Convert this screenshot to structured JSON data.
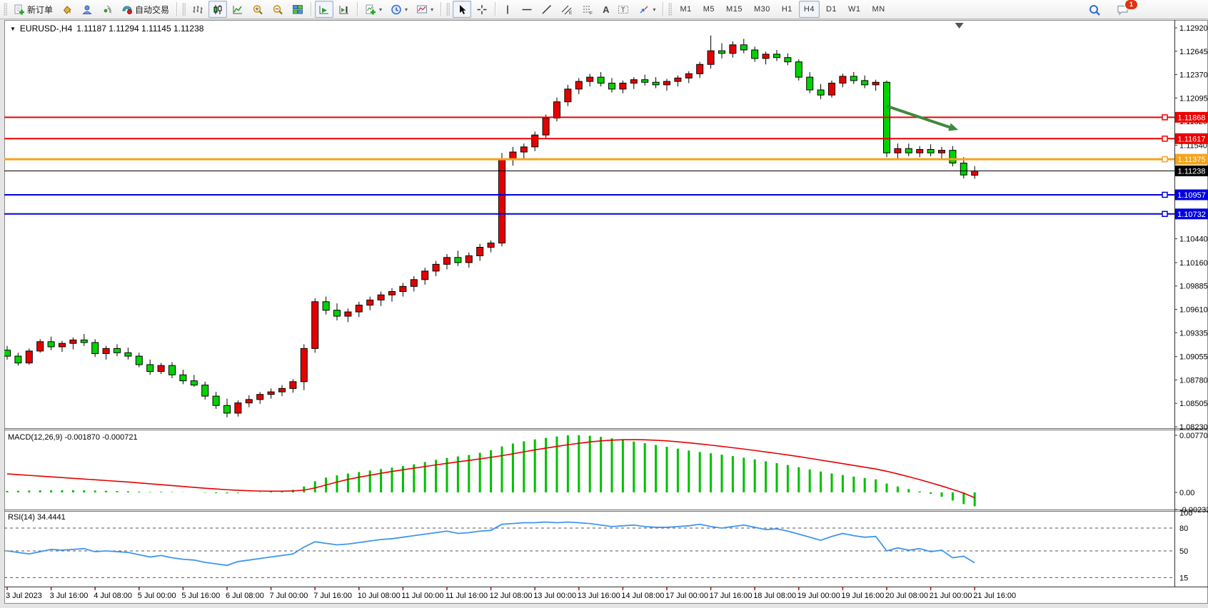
{
  "toolbar": {
    "new_order": "新订单",
    "auto_trading": "自动交易",
    "text_tool": "A",
    "label_tool": "T",
    "timeframes": [
      "M1",
      "M5",
      "M15",
      "M30",
      "H1",
      "H4",
      "D1",
      "W1",
      "MN"
    ],
    "active_timeframe": "H4",
    "notification_count": "1"
  },
  "chart": {
    "symbol_title": "EURUSD-,H4",
    "ohlc": "1.11187 1.11294 1.11145 1.11238",
    "colors": {
      "up": "#e60000",
      "down": "#00d300",
      "outline": "#000000",
      "macd_hist": "#00c000",
      "macd_signal": "#e60000",
      "rsi_line": "#4096ee",
      "level_dash": "#555555",
      "date_tick": "#cc0000"
    },
    "price_axis_labels": [
      "1.12920",
      "1.12645",
      "1.12370",
      "1.12095",
      "1.11820",
      "1.11540",
      "1.10440",
      "1.10160",
      "1.09885",
      "1.09610",
      "1.09335",
      "1.09055",
      "1.08780",
      "1.08505",
      "1.08230"
    ],
    "price_max": 1.1292,
    "price_min": 1.0823,
    "hlines": [
      {
        "price": "1.11868",
        "value": 1.11868,
        "color": "#ee0000",
        "width": 2,
        "anchor": true
      },
      {
        "price": "1.11617",
        "value": 1.11617,
        "color": "#ee0000",
        "width": 2,
        "anchor": true
      },
      {
        "price": "1.11375",
        "value": 1.11375,
        "color": "#f7a21b",
        "width": 3,
        "anchor": true
      },
      {
        "price": "1.11238",
        "value": 1.11238,
        "color": "#000000",
        "width": 1,
        "anchor": false
      },
      {
        "price": "1.10957",
        "value": 1.10957,
        "color": "#0000e0",
        "width": 2,
        "anchor": true
      },
      {
        "price": "1.10732",
        "value": 1.10732,
        "color": "#0000e0",
        "width": 2,
        "anchor": true
      }
    ],
    "arrow": {
      "from_bar": 80.0,
      "from_price": 1.12,
      "to_bar": 86.5,
      "to_price": 1.1172,
      "color": "#3c8a3c"
    },
    "shift_marker_bar": 86.6
  },
  "macd_panel": {
    "label": "MACD(12,26,9) -0.001870 -0.000721",
    "axis_labels": [
      {
        "text": "0.007705",
        "value": 0.007705
      },
      {
        "text": "0.00",
        "value": 0
      },
      {
        "text": "-0.002326",
        "value": -0.002326
      }
    ],
    "max": 0.007705
  },
  "rsi_panel": {
    "label": "RSI(14) 34.4441",
    "axis_labels": [
      {
        "text": "100",
        "value": 100
      },
      {
        "text": "80",
        "value": 80
      },
      {
        "text": "50",
        "value": 50
      },
      {
        "text": "15",
        "value": 15
      }
    ],
    "dash_levels": [
      80,
      50,
      15
    ]
  },
  "chart_data": {
    "type": "candlestick",
    "title": "EURUSD- H4",
    "x_labels": [
      "3 Jul 2023",
      "3 Jul 16:00",
      "4 Jul 08:00",
      "5 Jul 00:00",
      "5 Jul 16:00",
      "6 Jul 08:00",
      "7 Jul 00:00",
      "7 Jul 16:00",
      "10 Jul 08:00",
      "11 Jul 00:00",
      "11 Jul 16:00",
      "12 Jul 08:00",
      "13 Jul 00:00",
      "13 Jul 16:00",
      "14 Jul 08:00",
      "17 Jul 00:00",
      "17 Jul 16:00",
      "18 Jul 08:00",
      "19 Jul 00:00",
      "19 Jul 16:00",
      "20 Jul 08:00",
      "21 Jul 00:00",
      "21 Jul 16:00"
    ],
    "bars_per_label": 4,
    "candles": [
      [
        1.0913,
        1.0918,
        1.0902,
        1.0906
      ],
      [
        1.0906,
        1.091,
        1.0895,
        1.0898
      ],
      [
        1.0898,
        1.0915,
        1.0896,
        1.0912
      ],
      [
        1.0912,
        1.0926,
        1.091,
        1.0923
      ],
      [
        1.0923,
        1.0929,
        1.0913,
        1.0917
      ],
      [
        1.0917,
        1.0924,
        1.0911,
        1.0921
      ],
      [
        1.0921,
        1.0928,
        1.0914,
        1.0925
      ],
      [
        1.0925,
        1.0932,
        1.0918,
        1.0922
      ],
      [
        1.0922,
        1.0926,
        1.0905,
        1.0909
      ],
      [
        1.0909,
        1.0918,
        1.0902,
        1.0915
      ],
      [
        1.0915,
        1.092,
        1.0906,
        1.091
      ],
      [
        1.091,
        1.0916,
        1.0902,
        1.0906
      ],
      [
        1.0906,
        1.091,
        1.0893,
        1.0896
      ],
      [
        1.0896,
        1.0902,
        1.0884,
        1.0888
      ],
      [
        1.0888,
        1.0898,
        1.0885,
        1.0895
      ],
      [
        1.0895,
        1.0899,
        1.088,
        1.0884
      ],
      [
        1.0884,
        1.089,
        1.0873,
        1.0877
      ],
      [
        1.0877,
        1.0884,
        1.087,
        1.0872
      ],
      [
        1.0872,
        1.0876,
        1.0855,
        1.0859
      ],
      [
        1.0859,
        1.0864,
        1.0844,
        1.0848
      ],
      [
        1.0848,
        1.0856,
        1.0834,
        1.0839
      ],
      [
        1.0839,
        1.0854,
        1.0835,
        1.0851
      ],
      [
        1.0851,
        1.086,
        1.0846,
        1.0855
      ],
      [
        1.0855,
        1.0864,
        1.085,
        1.0861
      ],
      [
        1.0861,
        1.0868,
        1.0856,
        1.0864
      ],
      [
        1.0864,
        1.0872,
        1.0859,
        1.0868
      ],
      [
        1.0868,
        1.0879,
        1.0863,
        1.0876
      ],
      [
        1.0876,
        1.092,
        1.0866,
        1.0915
      ],
      [
        1.0915,
        1.0974,
        1.091,
        1.097
      ],
      [
        1.097,
        1.0976,
        1.0955,
        1.096
      ],
      [
        1.096,
        1.0968,
        1.0948,
        1.0953
      ],
      [
        1.0953,
        1.0962,
        1.0946,
        1.0958
      ],
      [
        1.0958,
        1.097,
        1.0952,
        1.0966
      ],
      [
        1.0966,
        1.0976,
        1.096,
        1.0972
      ],
      [
        1.0972,
        1.0982,
        1.0965,
        1.0978
      ],
      [
        1.0978,
        1.0986,
        1.097,
        1.0982
      ],
      [
        1.0982,
        1.0992,
        1.0976,
        1.0988
      ],
      [
        1.0988,
        1.1,
        1.0982,
        1.0996
      ],
      [
        1.0996,
        1.101,
        1.099,
        1.1006
      ],
      [
        1.1006,
        1.1018,
        1.1,
        1.1014
      ],
      [
        1.1014,
        1.1026,
        1.1008,
        1.1022
      ],
      [
        1.1022,
        1.103,
        1.1012,
        1.1016
      ],
      [
        1.1016,
        1.1028,
        1.101,
        1.1024
      ],
      [
        1.1024,
        1.1038,
        1.1018,
        1.1034
      ],
      [
        1.1034,
        1.1042,
        1.1028,
        1.1039
      ],
      [
        1.1039,
        1.1145,
        1.1035,
        1.1138
      ],
      [
        1.1138,
        1.1152,
        1.113,
        1.1146
      ],
      [
        1.1146,
        1.1156,
        1.1138,
        1.1152
      ],
      [
        1.1152,
        1.117,
        1.1147,
        1.1166
      ],
      [
        1.1166,
        1.119,
        1.1161,
        1.1186
      ],
      [
        1.1186,
        1.121,
        1.1182,
        1.1205
      ],
      [
        1.1205,
        1.1225,
        1.12,
        1.122
      ],
      [
        1.122,
        1.1233,
        1.1214,
        1.1229
      ],
      [
        1.1229,
        1.1238,
        1.1223,
        1.1234
      ],
      [
        1.1234,
        1.124,
        1.1223,
        1.1227
      ],
      [
        1.1227,
        1.1233,
        1.1216,
        1.122
      ],
      [
        1.122,
        1.123,
        1.1215,
        1.1227
      ],
      [
        1.1227,
        1.1234,
        1.122,
        1.1231
      ],
      [
        1.1231,
        1.1237,
        1.1224,
        1.1228
      ],
      [
        1.1228,
        1.1234,
        1.1221,
        1.1225
      ],
      [
        1.1225,
        1.1232,
        1.1218,
        1.1229
      ],
      [
        1.1229,
        1.1236,
        1.1223,
        1.1233
      ],
      [
        1.1233,
        1.1241,
        1.1227,
        1.1238
      ],
      [
        1.1238,
        1.1252,
        1.1233,
        1.1249
      ],
      [
        1.1249,
        1.1283,
        1.1244,
        1.1265
      ],
      [
        1.1265,
        1.1274,
        1.1256,
        1.1262
      ],
      [
        1.1262,
        1.1276,
        1.1257,
        1.1272
      ],
      [
        1.1272,
        1.1279,
        1.1262,
        1.1266
      ],
      [
        1.1266,
        1.127,
        1.1252,
        1.1256
      ],
      [
        1.1256,
        1.1264,
        1.1249,
        1.1261
      ],
      [
        1.1261,
        1.1266,
        1.1253,
        1.1257
      ],
      [
        1.1257,
        1.1262,
        1.1248,
        1.1252
      ],
      [
        1.1252,
        1.1255,
        1.123,
        1.1234
      ],
      [
        1.1234,
        1.124,
        1.1215,
        1.1219
      ],
      [
        1.1219,
        1.1226,
        1.1208,
        1.1213
      ],
      [
        1.1213,
        1.123,
        1.121,
        1.1227
      ],
      [
        1.1227,
        1.1238,
        1.1222,
        1.1235
      ],
      [
        1.1235,
        1.124,
        1.1226,
        1.123
      ],
      [
        1.123,
        1.1236,
        1.1221,
        1.1225
      ],
      [
        1.1225,
        1.1231,
        1.1218,
        1.1228
      ],
      [
        1.1228,
        1.123,
        1.114,
        1.1145
      ],
      [
        1.1145,
        1.1156,
        1.1138,
        1.115
      ],
      [
        1.115,
        1.1156,
        1.1141,
        1.1145
      ],
      [
        1.1145,
        1.1153,
        1.114,
        1.1149
      ],
      [
        1.1149,
        1.1155,
        1.1141,
        1.1145
      ],
      [
        1.1145,
        1.1152,
        1.1138,
        1.1148
      ],
      [
        1.1148,
        1.1153,
        1.1129,
        1.1133
      ],
      [
        1.1133,
        1.114,
        1.1115,
        1.1119
      ],
      [
        1.11187,
        1.11294,
        1.11145,
        1.11238
      ]
    ],
    "macd_histogram": [
      0.0002,
      0.00022,
      0.00025,
      0.00027,
      0.00028,
      0.0003,
      0.0003,
      0.00028,
      0.00025,
      0.00022,
      0.00018,
      0.00015,
      0.0001,
      6e-05,
      8e-05,
      5e-05,
      2e-05,
      0.0,
      -5e-05,
      -0.0001,
      -0.00012,
      -8e-05,
      -2e-05,
      5e-05,
      0.00012,
      0.0002,
      0.00035,
      0.0008,
      0.0015,
      0.002,
      0.0023,
      0.00255,
      0.00275,
      0.00295,
      0.00315,
      0.00335,
      0.00355,
      0.0038,
      0.0041,
      0.0044,
      0.00465,
      0.00485,
      0.00505,
      0.00535,
      0.0057,
      0.0062,
      0.0066,
      0.0069,
      0.00715,
      0.00735,
      0.00755,
      0.0077,
      0.00772,
      0.00765,
      0.0075,
      0.0073,
      0.0071,
      0.00688,
      0.00664,
      0.0064,
      0.00615,
      0.0059,
      0.00565,
      0.00545,
      0.00528,
      0.0051,
      0.0049,
      0.00468,
      0.00445,
      0.0042,
      0.00395,
      0.0037,
      0.0034,
      0.0031,
      0.00282,
      0.00256,
      0.00234,
      0.00214,
      0.00195,
      0.00176,
      0.0012,
      0.0008,
      0.00045,
      0.00015,
      -0.0002,
      -0.0006,
      -0.0011,
      -0.00158,
      -0.00187
    ],
    "macd_signal": [
      0.0025,
      0.0024,
      0.0023,
      0.0022,
      0.0021,
      0.002,
      0.0019,
      0.0018,
      0.0017,
      0.0016,
      0.0015,
      0.0014,
      0.00128,
      0.00116,
      0.00104,
      0.00092,
      0.0008,
      0.00068,
      0.00056,
      0.00046,
      0.00036,
      0.00028,
      0.00022,
      0.00018,
      0.00016,
      0.00016,
      0.0002,
      0.0003,
      0.0006,
      0.001,
      0.0014,
      0.00175,
      0.00205,
      0.00232,
      0.00258,
      0.00282,
      0.00305,
      0.00327,
      0.00349,
      0.00371,
      0.00392,
      0.00412,
      0.00432,
      0.00452,
      0.00473,
      0.00496,
      0.00521,
      0.00548,
      0.00574,
      0.00598,
      0.00621,
      0.00643,
      0.00663,
      0.00681,
      0.00695,
      0.00705,
      0.00711,
      0.00712,
      0.0071,
      0.00704,
      0.00695,
      0.00683,
      0.00669,
      0.00654,
      0.00638,
      0.00621,
      0.00603,
      0.00585,
      0.00566,
      0.00546,
      0.00526,
      0.00505,
      0.00483,
      0.0046,
      0.00436,
      0.00412,
      0.00388,
      0.00364,
      0.0034,
      0.00316,
      0.00285,
      0.0025,
      0.00212,
      0.00172,
      0.0013,
      0.00086,
      0.0004,
      -0.0001,
      -0.00072
    ],
    "rsi": [
      50,
      48,
      46,
      49,
      52,
      51,
      52,
      53,
      49,
      50,
      49,
      48,
      45,
      42,
      44,
      41,
      39,
      38,
      35,
      33,
      31,
      36,
      38,
      40,
      42,
      44,
      46,
      55,
      62,
      60,
      58,
      59,
      61,
      63,
      65,
      66,
      68,
      70,
      72,
      74,
      76,
      73,
      74,
      76,
      77,
      85,
      86,
      87,
      87,
      88,
      87,
      88,
      87,
      86,
      84,
      82,
      83,
      84,
      82,
      81,
      81,
      82,
      83,
      85,
      82,
      80,
      82,
      84,
      81,
      78,
      79,
      76,
      72,
      68,
      64,
      69,
      73,
      70,
      68,
      69,
      50,
      54,
      51,
      53,
      49,
      51,
      41,
      43,
      34.44
    ]
  }
}
